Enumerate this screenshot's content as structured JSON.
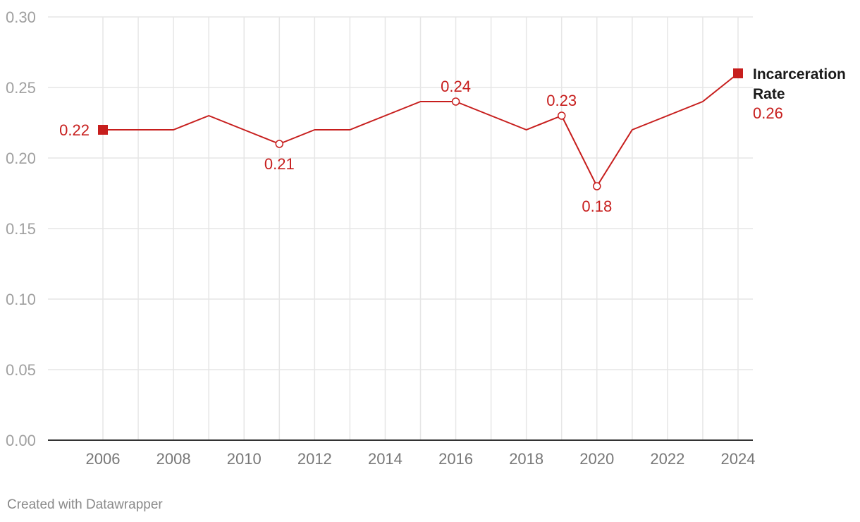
{
  "colors": {
    "series": "#c71e1d",
    "grid": "#e6e6e6",
    "axis": "#333333"
  },
  "footer": {
    "credit": "Created with Datawrapper"
  },
  "chart_data": {
    "type": "line",
    "title": "",
    "xlabel": "",
    "ylabel": "",
    "ylim": [
      0,
      0.3
    ],
    "xlim": [
      2004.5,
      2024.4
    ],
    "y_ticks": [
      "0.00",
      "0.05",
      "0.10",
      "0.15",
      "0.20",
      "0.25",
      "0.30"
    ],
    "y_tick_values": [
      0,
      0.05,
      0.1,
      0.15,
      0.2,
      0.25,
      0.3
    ],
    "x_ticks": [
      "2006",
      "2008",
      "2010",
      "2012",
      "2014",
      "2016",
      "2018",
      "2020",
      "2022",
      "2024"
    ],
    "x_tick_values": [
      2006,
      2008,
      2010,
      2012,
      2014,
      2016,
      2018,
      2020,
      2022,
      2024
    ],
    "x_gridlines": [
      2006,
      2007,
      2008,
      2009,
      2010,
      2011,
      2012,
      2013,
      2014,
      2015,
      2016,
      2017,
      2018,
      2019,
      2020,
      2021,
      2022,
      2023,
      2024
    ],
    "series": [
      {
        "name": "Incarceration Rate",
        "name_lines": [
          "Incarceration",
          "Rate"
        ],
        "x": [
          2006,
          2007,
          2008,
          2009,
          2010,
          2011,
          2012,
          2013,
          2014,
          2015,
          2016,
          2017,
          2018,
          2019,
          2020,
          2021,
          2022,
          2023,
          2024
        ],
        "values": [
          0.22,
          0.22,
          0.22,
          0.23,
          0.22,
          0.21,
          0.22,
          0.22,
          0.23,
          0.24,
          0.24,
          0.23,
          0.22,
          0.23,
          0.18,
          0.22,
          0.23,
          0.24,
          0.26
        ]
      }
    ],
    "annotations": [
      {
        "x": 2006,
        "y": 0.22,
        "label": "0.22",
        "marker": "square",
        "position": "left"
      },
      {
        "x": 2011,
        "y": 0.21,
        "label": "0.21",
        "marker": "circle",
        "position": "below"
      },
      {
        "x": 2016,
        "y": 0.24,
        "label": "0.24",
        "marker": "circle",
        "position": "above"
      },
      {
        "x": 2019,
        "y": 0.23,
        "label": "0.23",
        "marker": "circle",
        "position": "above"
      },
      {
        "x": 2020,
        "y": 0.18,
        "label": "0.18",
        "marker": "circle",
        "position": "below"
      },
      {
        "x": 2024,
        "y": 0.26,
        "label": "0.26",
        "marker": "square",
        "position": "end"
      }
    ]
  }
}
